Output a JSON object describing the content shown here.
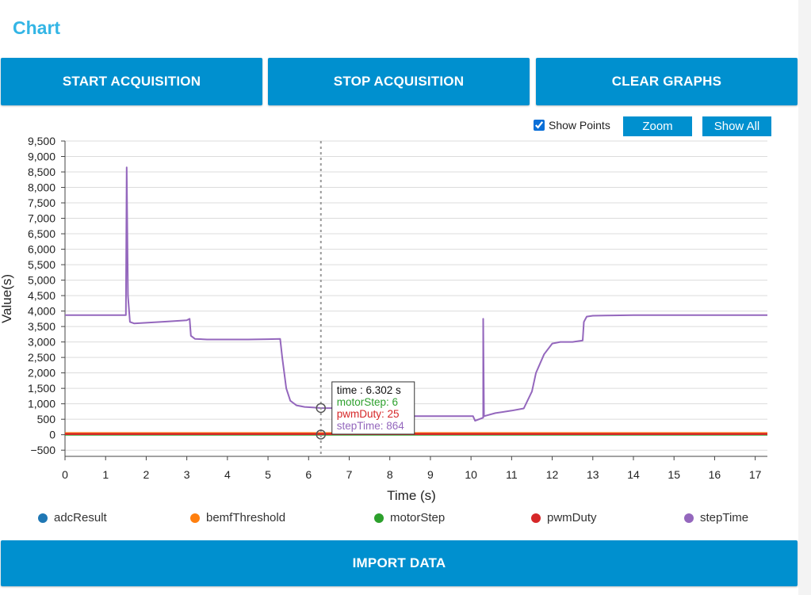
{
  "title": "Chart",
  "buttons": {
    "start": "START ACQUISITION",
    "stop": "STOP ACQUISITION",
    "clear": "CLEAR GRAPHS",
    "import": "IMPORT DATA",
    "zoom": "Zoom",
    "show_all": "Show All"
  },
  "show_points": {
    "label": "Show Points",
    "checked": true
  },
  "chart_data": {
    "type": "line",
    "xlabel": "Time (s)",
    "ylabel": "Value(s)",
    "xlim": [
      0,
      17.3
    ],
    "ylim": [
      -700,
      9500
    ],
    "x_ticks": [
      0,
      1,
      2,
      3,
      4,
      5,
      6,
      7,
      8,
      9,
      10,
      11,
      12,
      13,
      14,
      15,
      16,
      17
    ],
    "y_ticks": [
      -500,
      0,
      500,
      1000,
      1500,
      2000,
      2500,
      3000,
      3500,
      4000,
      4500,
      5000,
      5500,
      6000,
      6500,
      7000,
      7500,
      8000,
      8500,
      9000,
      9500
    ],
    "y_tick_labels": [
      "−500",
      "0",
      "500",
      "1,000",
      "1,500",
      "2,000",
      "2,500",
      "3,000",
      "3,500",
      "4,000",
      "4,500",
      "5,000",
      "5,500",
      "6,000",
      "6,500",
      "7,000",
      "7,500",
      "8,000",
      "8,500",
      "9,000",
      "9,500"
    ],
    "grid": true,
    "legend_position": "bottom",
    "series": [
      {
        "name": "adcResult",
        "color": "#1f77b4",
        "x": [
          0,
          1.5,
          3,
          4.5,
          5.3,
          6.3,
          8,
          10.1,
          12,
          14,
          17.3
        ],
        "y": [
          20,
          40,
          30,
          25,
          35,
          20,
          30,
          40,
          30,
          20,
          20
        ]
      },
      {
        "name": "bemfThreshold",
        "color": "#ff7f0e",
        "x": [
          0,
          17.3
        ],
        "y": [
          50,
          50
        ]
      },
      {
        "name": "motorStep",
        "color": "#2ca02c",
        "x": [
          0,
          6.302,
          17.3
        ],
        "y": [
          6,
          6,
          6
        ]
      },
      {
        "name": "pwmDuty",
        "color": "#d62728",
        "x": [
          0,
          6.302,
          17.3
        ],
        "y": [
          25,
          25,
          25
        ]
      },
      {
        "name": "stepTime",
        "color": "#9467bd",
        "x": [
          0,
          1.5,
          1.52,
          1.55,
          1.6,
          1.7,
          2.0,
          2.5,
          3.0,
          3.07,
          3.1,
          3.2,
          3.5,
          4.0,
          4.5,
          5.0,
          5.3,
          5.35,
          5.45,
          5.55,
          5.7,
          5.9,
          6.1,
          6.302,
          6.6,
          7.0,
          7.5,
          8.0,
          8.5,
          9.0,
          9.5,
          10.05,
          10.1,
          10.3,
          10.3,
          10.32,
          10.6,
          11.0,
          11.3,
          11.5,
          11.6,
          11.8,
          12.0,
          12.2,
          12.5,
          12.75,
          12.78,
          12.85,
          13.0,
          13.5,
          14.0,
          17.3
        ],
        "y": [
          3870,
          3870,
          8650,
          4500,
          3650,
          3600,
          3620,
          3660,
          3700,
          3750,
          3200,
          3100,
          3080,
          3080,
          3080,
          3090,
          3100,
          2500,
          1500,
          1100,
          950,
          900,
          880,
          864,
          860,
          860,
          900,
          600,
          600,
          600,
          600,
          600,
          450,
          550,
          3750,
          600,
          700,
          780,
          850,
          1400,
          2000,
          2600,
          2950,
          3000,
          3000,
          3050,
          3650,
          3820,
          3850,
          3860,
          3870,
          3870
        ]
      }
    ],
    "tooltip": {
      "time": "time : 6.302 s",
      "motorStep": "motorStep: 6",
      "pwmDuty": "pwmDuty: 25",
      "stepTime": "stepTime: 864",
      "x": 6.302
    }
  }
}
